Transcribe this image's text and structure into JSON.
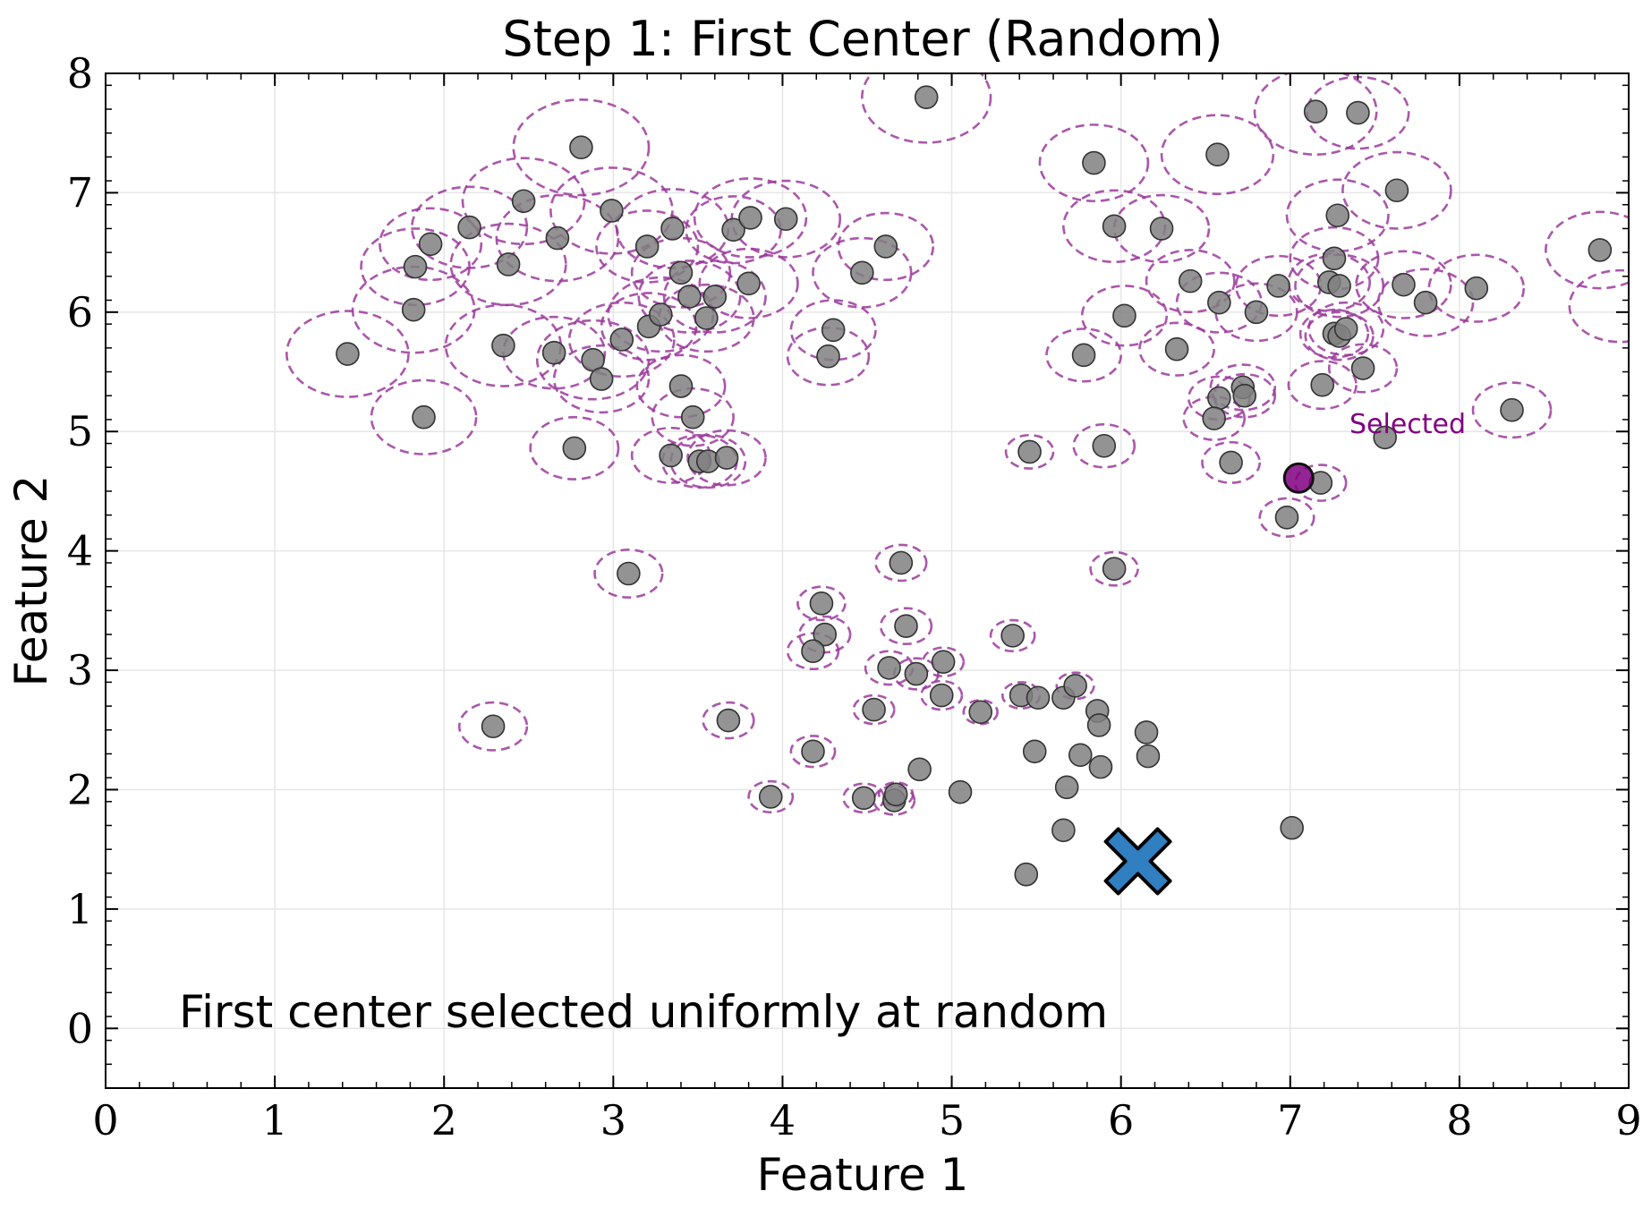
{
  "chart_data": {
    "type": "scatter",
    "title": "Step 1: First Center (Random)",
    "xlabel": "Feature 1",
    "ylabel": "Feature 2",
    "xlim": [
      0,
      9
    ],
    "ylim": [
      -0.5,
      8
    ],
    "xticks": [
      0,
      1,
      2,
      3,
      4,
      5,
      6,
      7,
      8,
      9
    ],
    "yticks": [
      0,
      1,
      2,
      3,
      4,
      5,
      6,
      7,
      8
    ],
    "grid": true,
    "points": [
      [
        1.43,
        5.65
      ],
      [
        1.82,
        6.02
      ],
      [
        1.83,
        6.38
      ],
      [
        1.92,
        6.57
      ],
      [
        1.88,
        5.12
      ],
      [
        2.15,
        6.71
      ],
      [
        2.38,
        6.4
      ],
      [
        2.47,
        6.93
      ],
      [
        2.35,
        5.72
      ],
      [
        2.81,
        7.38
      ],
      [
        2.99,
        6.85
      ],
      [
        2.67,
        6.62
      ],
      [
        2.65,
        5.66
      ],
      [
        2.88,
        5.6
      ],
      [
        2.93,
        5.44
      ],
      [
        3.05,
        5.77
      ],
      [
        3.2,
        6.55
      ],
      [
        3.35,
        6.7
      ],
      [
        3.21,
        5.88
      ],
      [
        3.28,
        5.98
      ],
      [
        3.4,
        6.33
      ],
      [
        3.45,
        6.13
      ],
      [
        3.6,
        6.13
      ],
      [
        3.55,
        5.95
      ],
      [
        3.71,
        6.69
      ],
      [
        3.81,
        6.79
      ],
      [
        3.8,
        6.24
      ],
      [
        4.02,
        6.78
      ],
      [
        3.4,
        5.38
      ],
      [
        3.47,
        5.12
      ],
      [
        2.77,
        4.86
      ],
      [
        3.34,
        4.8
      ],
      [
        3.51,
        4.75
      ],
      [
        3.56,
        4.75
      ],
      [
        3.67,
        4.78
      ],
      [
        4.3,
        5.85
      ],
      [
        4.27,
        5.63
      ],
      [
        4.61,
        6.55
      ],
      [
        4.47,
        6.33
      ],
      [
        4.85,
        7.8
      ],
      [
        5.84,
        7.25
      ],
      [
        6.57,
        7.32
      ],
      [
        7.15,
        7.68
      ],
      [
        7.4,
        7.67
      ],
      [
        7.63,
        7.02
      ],
      [
        7.28,
        6.81
      ],
      [
        5.96,
        6.72
      ],
      [
        6.24,
        6.7
      ],
      [
        6.41,
        6.26
      ],
      [
        6.58,
        6.08
      ],
      [
        6.8,
        6.0
      ],
      [
        6.93,
        6.22
      ],
      [
        7.26,
        6.45
      ],
      [
        7.23,
        6.25
      ],
      [
        7.29,
        6.22
      ],
      [
        7.67,
        6.23
      ],
      [
        7.8,
        6.08
      ],
      [
        8.1,
        6.2
      ],
      [
        8.83,
        6.52
      ],
      [
        6.02,
        5.97
      ],
      [
        6.33,
        5.69
      ],
      [
        5.78,
        5.64
      ],
      [
        7.26,
        5.82
      ],
      [
        7.29,
        5.8
      ],
      [
        7.33,
        5.86
      ],
      [
        7.43,
        5.53
      ],
      [
        7.19,
        5.39
      ],
      [
        6.72,
        5.37
      ],
      [
        6.73,
        5.3
      ],
      [
        6.58,
        5.28
      ],
      [
        6.55,
        5.11
      ],
      [
        8.31,
        5.18
      ],
      [
        7.56,
        4.95
      ],
      [
        5.46,
        4.83
      ],
      [
        5.9,
        4.88
      ],
      [
        6.65,
        4.74
      ],
      [
        7.18,
        4.57
      ],
      [
        6.98,
        4.28
      ],
      [
        3.09,
        3.81
      ],
      [
        4.7,
        3.9
      ],
      [
        5.96,
        3.85
      ],
      [
        4.23,
        3.56
      ],
      [
        4.25,
        3.3
      ],
      [
        4.73,
        3.37
      ],
      [
        4.18,
        3.16
      ],
      [
        4.63,
        3.02
      ],
      [
        4.79,
        2.97
      ],
      [
        4.95,
        3.07
      ],
      [
        5.36,
        3.29
      ],
      [
        4.94,
        2.79
      ],
      [
        5.41,
        2.79
      ],
      [
        5.51,
        2.77
      ],
      [
        5.66,
        2.77
      ],
      [
        5.73,
        2.87
      ],
      [
        5.86,
        2.66
      ],
      [
        5.87,
        2.54
      ],
      [
        6.15,
        2.48
      ],
      [
        2.29,
        2.53
      ],
      [
        3.68,
        2.58
      ],
      [
        4.54,
        2.67
      ],
      [
        5.17,
        2.65
      ],
      [
        4.18,
        2.32
      ],
      [
        5.49,
        2.32
      ],
      [
        5.76,
        2.29
      ],
      [
        6.16,
        2.28
      ],
      [
        4.81,
        2.17
      ],
      [
        5.68,
        2.02
      ],
      [
        5.88,
        2.19
      ],
      [
        5.05,
        1.98
      ],
      [
        3.93,
        1.94
      ],
      [
        4.48,
        1.93
      ],
      [
        4.66,
        1.91
      ],
      [
        4.67,
        1.96
      ],
      [
        5.66,
        1.66
      ],
      [
        7.01,
        1.68
      ],
      [
        5.44,
        1.29
      ]
    ],
    "candidate_circles": [
      [
        1.43,
        5.65,
        0.36
      ],
      [
        1.82,
        6.02,
        0.36
      ],
      [
        1.83,
        6.38,
        0.32
      ],
      [
        1.92,
        6.57,
        0.3
      ],
      [
        1.88,
        5.12,
        0.31
      ],
      [
        2.15,
        6.71,
        0.34
      ],
      [
        2.38,
        6.4,
        0.34
      ],
      [
        2.47,
        6.93,
        0.36
      ],
      [
        2.35,
        5.72,
        0.34
      ],
      [
        2.81,
        7.38,
        0.4
      ],
      [
        2.99,
        6.85,
        0.36
      ],
      [
        2.67,
        6.62,
        0.36
      ],
      [
        2.65,
        5.66,
        0.3
      ],
      [
        2.88,
        5.6,
        0.33
      ],
      [
        2.93,
        5.44,
        0.28
      ],
      [
        3.05,
        5.77,
        0.31
      ],
      [
        3.2,
        6.55,
        0.3
      ],
      [
        3.35,
        6.7,
        0.33
      ],
      [
        3.21,
        5.88,
        0.28
      ],
      [
        3.28,
        5.98,
        0.31
      ],
      [
        3.4,
        6.33,
        0.29
      ],
      [
        3.45,
        6.13,
        0.3
      ],
      [
        3.6,
        6.13,
        0.3
      ],
      [
        3.55,
        5.95,
        0.28
      ],
      [
        3.71,
        6.69,
        0.28
      ],
      [
        3.81,
        6.79,
        0.33
      ],
      [
        3.8,
        6.24,
        0.29
      ],
      [
        4.02,
        6.78,
        0.32
      ],
      [
        3.4,
        5.38,
        0.26
      ],
      [
        3.47,
        5.12,
        0.24
      ],
      [
        2.77,
        4.86,
        0.26
      ],
      [
        3.34,
        4.8,
        0.23
      ],
      [
        3.51,
        4.75,
        0.22
      ],
      [
        3.56,
        4.75,
        0.22
      ],
      [
        3.67,
        4.78,
        0.23
      ],
      [
        4.3,
        5.85,
        0.25
      ],
      [
        4.27,
        5.63,
        0.24
      ],
      [
        4.61,
        6.55,
        0.28
      ],
      [
        4.47,
        6.33,
        0.29
      ],
      [
        4.85,
        7.8,
        0.38
      ],
      [
        5.84,
        7.25,
        0.32
      ],
      [
        6.57,
        7.32,
        0.33
      ],
      [
        7.15,
        7.68,
        0.36
      ],
      [
        7.4,
        7.67,
        0.3
      ],
      [
        7.63,
        7.02,
        0.32
      ],
      [
        7.28,
        6.81,
        0.3
      ],
      [
        5.96,
        6.72,
        0.3
      ],
      [
        6.24,
        6.7,
        0.28
      ],
      [
        6.41,
        6.26,
        0.26
      ],
      [
        6.58,
        6.08,
        0.25
      ],
      [
        6.8,
        6.0,
        0.24
      ],
      [
        6.93,
        6.22,
        0.25
      ],
      [
        7.26,
        6.45,
        0.26
      ],
      [
        7.23,
        6.25,
        0.24
      ],
      [
        7.29,
        6.22,
        0.26
      ],
      [
        7.67,
        6.23,
        0.28
      ],
      [
        7.8,
        6.08,
        0.28
      ],
      [
        8.1,
        6.2,
        0.28
      ],
      [
        8.83,
        6.52,
        0.32
      ],
      [
        6.02,
        5.97,
        0.25
      ],
      [
        6.33,
        5.69,
        0.22
      ],
      [
        5.78,
        5.64,
        0.22
      ],
      [
        7.26,
        5.82,
        0.2
      ],
      [
        7.29,
        5.8,
        0.2
      ],
      [
        7.33,
        5.86,
        0.22
      ],
      [
        7.43,
        5.53,
        0.2
      ],
      [
        7.19,
        5.39,
        0.2
      ],
      [
        6.72,
        5.37,
        0.19
      ],
      [
        6.73,
        5.3,
        0.18
      ],
      [
        6.58,
        5.28,
        0.18
      ],
      [
        6.55,
        5.11,
        0.18
      ],
      [
        8.31,
        5.18,
        0.23
      ],
      [
        5.46,
        4.83,
        0.14
      ],
      [
        5.9,
        4.88,
        0.18
      ],
      [
        6.65,
        4.74,
        0.17
      ],
      [
        7.18,
        4.57,
        0.15
      ],
      [
        6.98,
        4.28,
        0.16
      ],
      [
        3.09,
        3.81,
        0.2
      ],
      [
        4.7,
        3.9,
        0.15
      ],
      [
        5.96,
        3.85,
        0.14
      ],
      [
        4.23,
        3.56,
        0.14
      ],
      [
        4.25,
        3.3,
        0.15
      ],
      [
        4.73,
        3.37,
        0.15
      ],
      [
        4.18,
        3.16,
        0.15
      ],
      [
        4.63,
        3.02,
        0.14
      ],
      [
        4.79,
        2.97,
        0.13
      ],
      [
        4.95,
        3.07,
        0.12
      ],
      [
        5.36,
        3.29,
        0.13
      ],
      [
        4.94,
        2.79,
        0.12
      ],
      [
        5.41,
        2.79,
        0.11
      ],
      [
        5.73,
        2.87,
        0.11
      ],
      [
        2.29,
        2.53,
        0.2
      ],
      [
        3.68,
        2.58,
        0.15
      ],
      [
        4.54,
        2.67,
        0.12
      ],
      [
        5.17,
        2.65,
        0.1
      ],
      [
        4.18,
        2.32,
        0.13
      ],
      [
        3.93,
        1.94,
        0.13
      ],
      [
        4.48,
        1.93,
        0.12
      ],
      [
        4.66,
        1.91,
        0.12
      ],
      [
        4.67,
        1.96,
        0.1
      ],
      [
        8.95,
        6.05,
        0.3
      ]
    ],
    "selected_point": {
      "x": 7.05,
      "y": 4.61,
      "label": "Selected"
    },
    "first_center": {
      "x": 6.1,
      "y": 1.4,
      "marker": "X"
    },
    "annotation": "First center selected uniformly at random",
    "colors": {
      "points": "#808080",
      "point_edge": "#333333",
      "circles": "#9b3a9b",
      "selected": "#800080",
      "center": "#2f7fc1"
    }
  }
}
